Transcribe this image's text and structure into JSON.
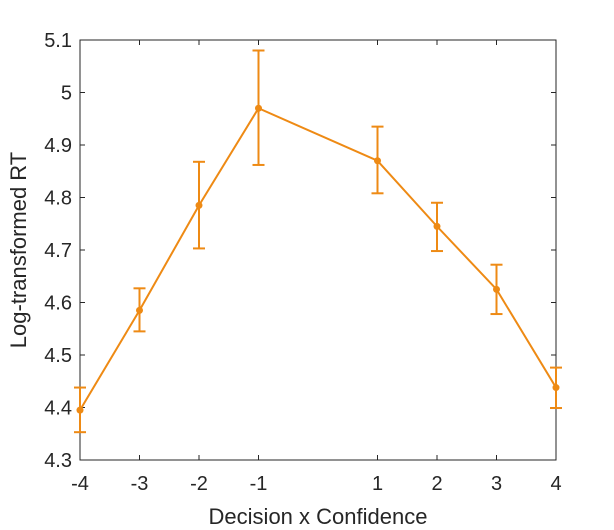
{
  "chart_data": {
    "type": "line",
    "title": "",
    "xlabel": "Decision x Confidence",
    "ylabel": "Log-transformed RT",
    "xlim": [
      -4,
      4
    ],
    "ylim": [
      4.3,
      5.1
    ],
    "xticks": [
      -4,
      -3,
      -2,
      -1,
      1,
      2,
      3,
      4
    ],
    "xtick_labels": [
      "-4",
      "-3",
      "-2",
      "-1",
      "1",
      "2",
      "3",
      "4"
    ],
    "yticks": [
      4.3,
      4.4,
      4.5,
      4.6,
      4.7,
      4.8,
      4.9,
      5.0,
      5.1
    ],
    "ytick_labels": [
      "4.3",
      "4.4",
      "4.5",
      "4.6",
      "4.7",
      "4.8",
      "4.9",
      "5",
      "5.1"
    ],
    "grid": false,
    "series": [
      {
        "name": "RT",
        "color": "#EE8A14",
        "x": [
          -4,
          -3,
          -2,
          -1,
          1,
          2,
          3,
          4
        ],
        "y": [
          4.395,
          4.585,
          4.785,
          4.97,
          4.87,
          4.745,
          4.625,
          4.438
        ],
        "err_low": [
          4.353,
          4.545,
          4.703,
          4.862,
          4.808,
          4.698,
          4.578,
          4.399
        ],
        "err_high": [
          4.438,
          4.627,
          4.868,
          5.08,
          4.935,
          4.79,
          4.672,
          4.476
        ]
      }
    ]
  }
}
